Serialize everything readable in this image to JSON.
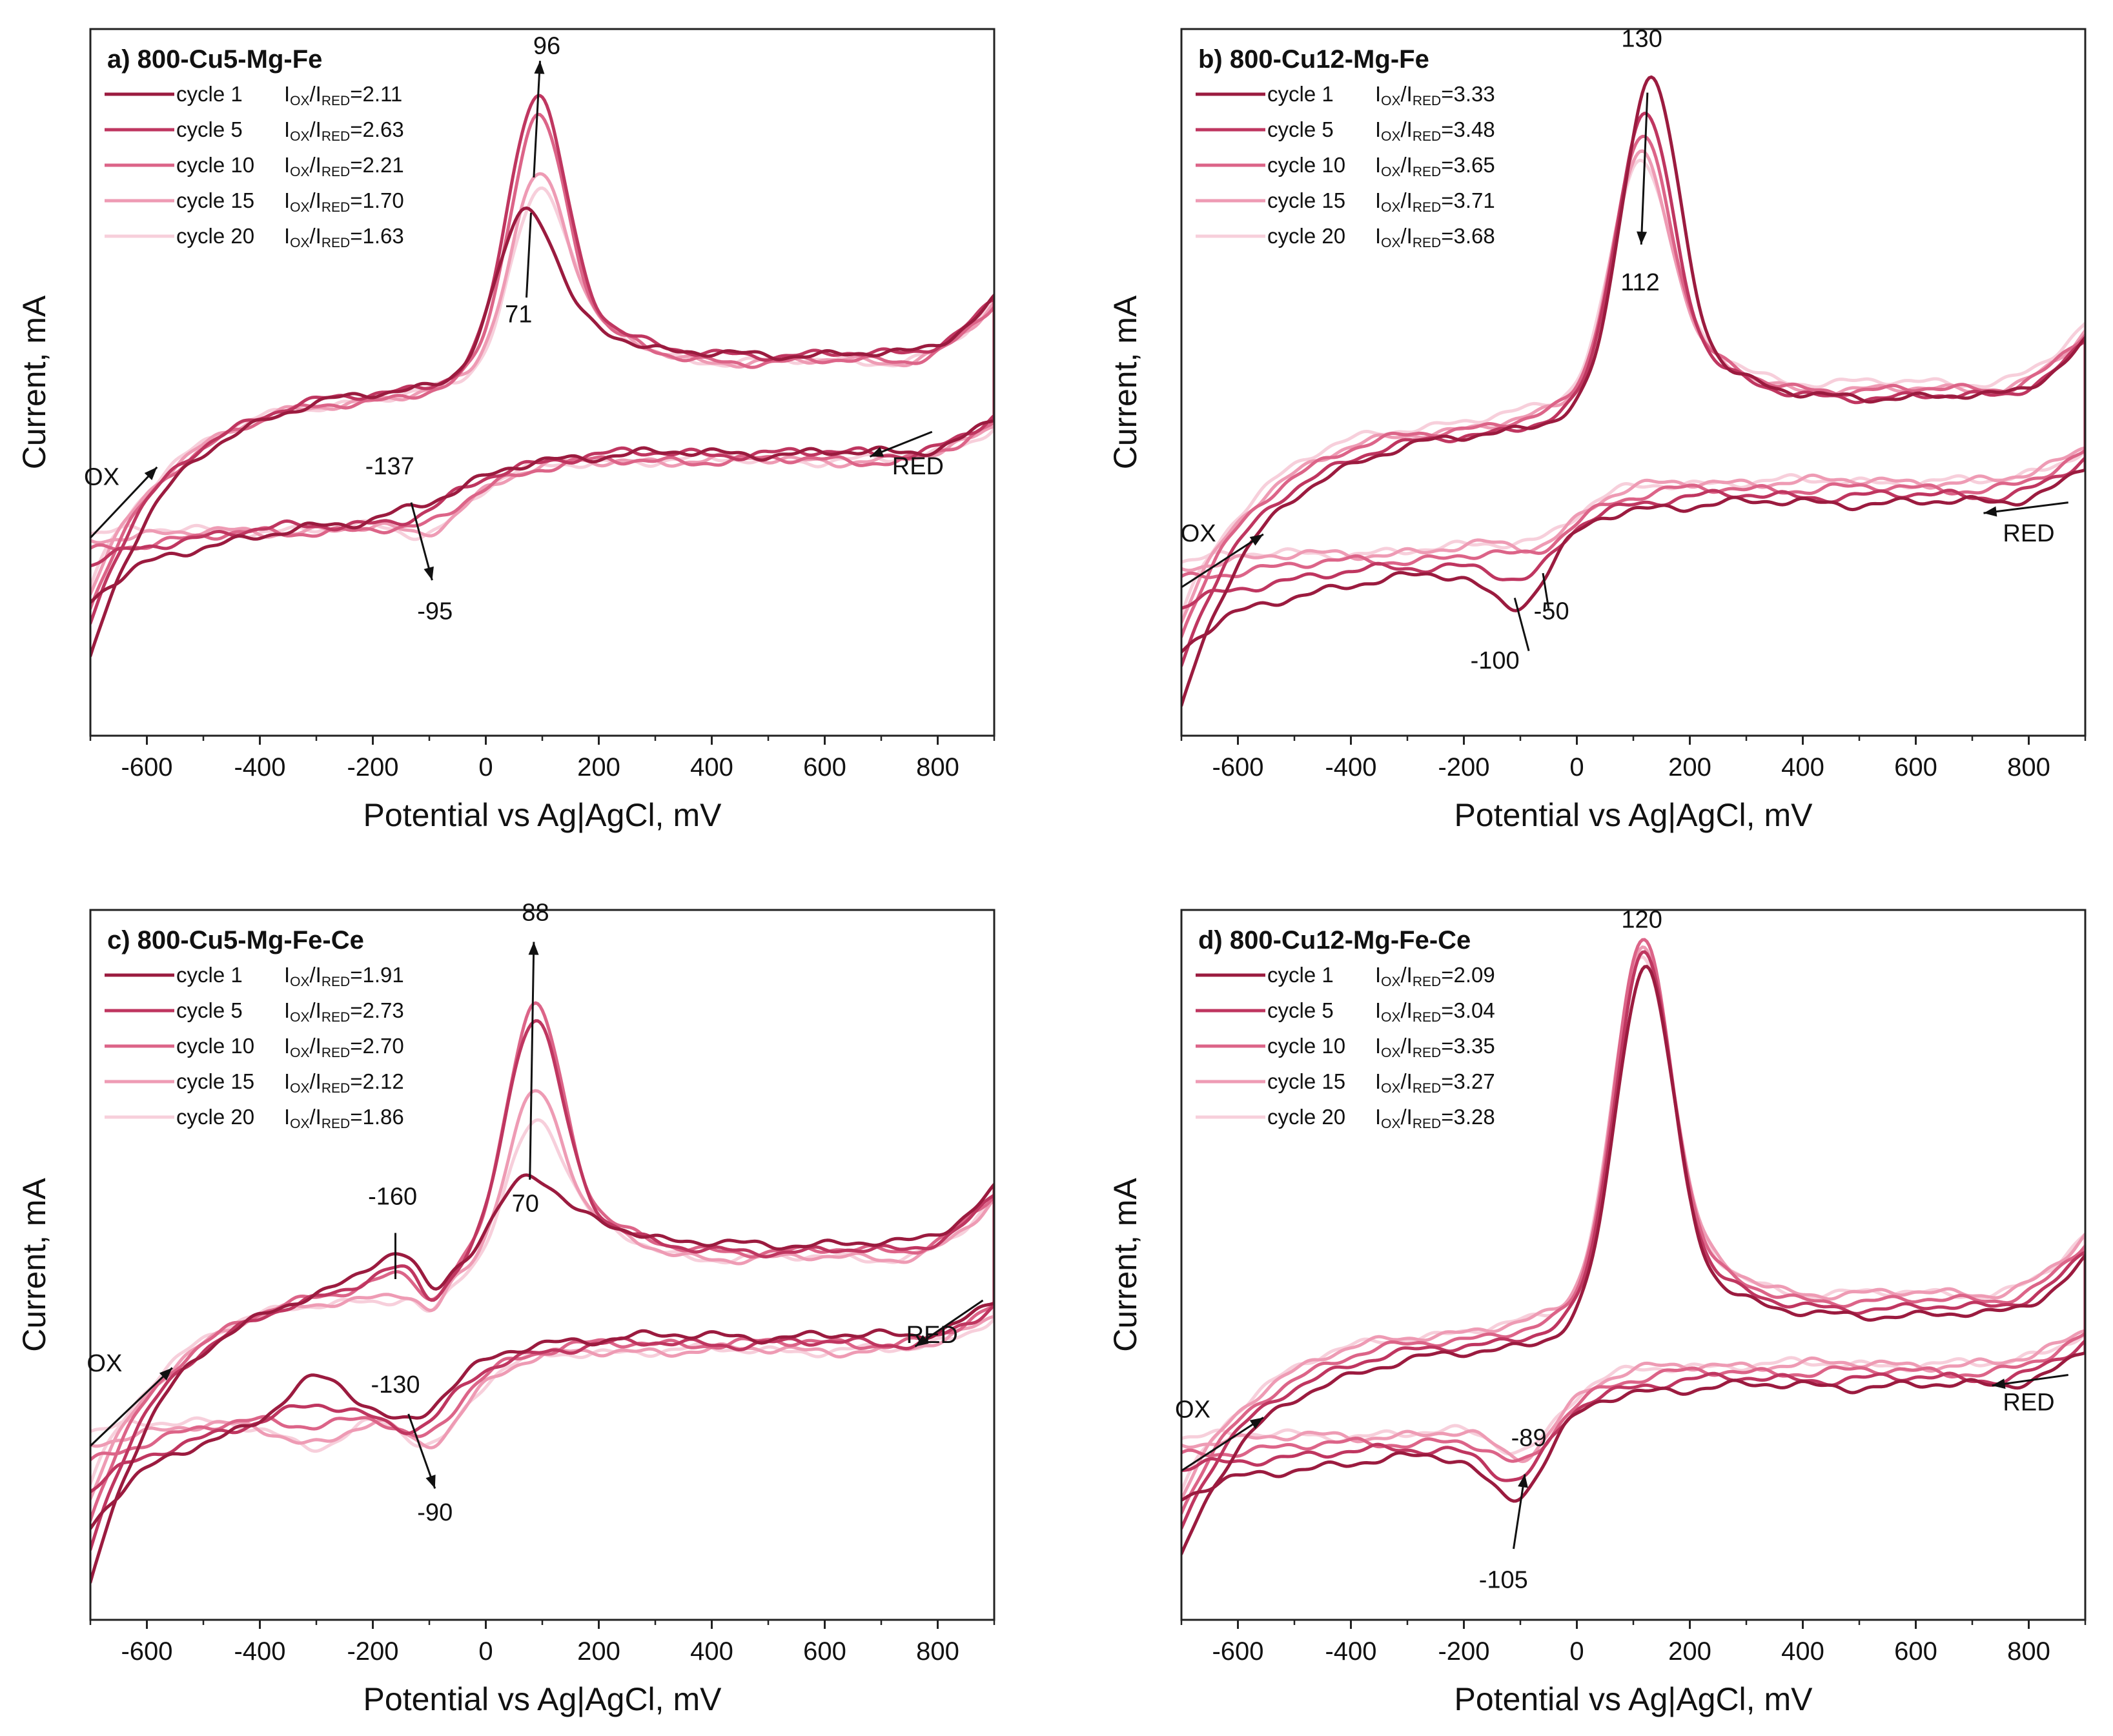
{
  "figure": {
    "axis_labels": {
      "x": "Potential vs Ag|AgCl, mV",
      "y": "Current, mA"
    }
  },
  "chart_data": [
    {
      "type": "line",
      "panel": "a",
      "title": "a) 800-Cu5-Mg-Fe",
      "xlabel": "Potential vs Ag|AgCl, mV",
      "ylabel": "Current, mA",
      "xlim": [
        -700,
        900
      ],
      "ylim": [
        0,
        1
      ],
      "y_ticks_shown": false,
      "x_ticks": [
        -600,
        -400,
        -200,
        0,
        200,
        400,
        600,
        800
      ],
      "legend_position": "top-left",
      "ratio_label": {
        "main": "I",
        "sub1": "OX",
        "sep": "/I",
        "sub2": "RED"
      },
      "series": [
        {
          "name": "cycle 1",
          "ratio": "=2.11",
          "color": "#9b1b3f",
          "ox_peak_x": 71,
          "ox_peak_y": 0.74,
          "red_peak_x": -137,
          "red_peak_y": 0.31,
          "base_y": 0.4,
          "upper_base_y": 0.49,
          "start_y": 0.11
        },
        {
          "name": "cycle 5",
          "ratio": "=2.63",
          "color": "#bf3660",
          "ox_peak_x": 90,
          "ox_peak_y": 0.9,
          "red_peak_x": -120,
          "red_peak_y": 0.29,
          "base_y": 0.4,
          "upper_base_y": 0.49,
          "start_y": 0.16
        },
        {
          "name": "cycle 10",
          "ratio": "=2.21",
          "color": "#dc6488",
          "ox_peak_x": 92,
          "ox_peak_y": 0.87,
          "red_peak_x": -105,
          "red_peak_y": 0.27,
          "base_y": 0.39,
          "upper_base_y": 0.48,
          "start_y": 0.18
        },
        {
          "name": "cycle 15",
          "ratio": "=1.70",
          "color": "#ee9bb4",
          "ox_peak_x": 94,
          "ox_peak_y": 0.79,
          "red_peak_x": -98,
          "red_peak_y": 0.26,
          "base_y": 0.39,
          "upper_base_y": 0.48,
          "start_y": 0.2
        },
        {
          "name": "cycle 20",
          "ratio": "=1.63",
          "color": "#f7cfdb",
          "ox_peak_x": 96,
          "ox_peak_y": 0.77,
          "red_peak_x": -95,
          "red_peak_y": 0.26,
          "base_y": 0.39,
          "upper_base_y": 0.48,
          "start_y": 0.21
        }
      ],
      "annotations": [
        {
          "text": "96",
          "x": 108,
          "y": 0.965
        },
        {
          "text": "71",
          "x": 58,
          "y": 0.585
        },
        {
          "text": "-137",
          "x": -170,
          "y": 0.37
        },
        {
          "text": "-95",
          "x": -90,
          "y": 0.165
        },
        {
          "text": "OX",
          "x": -680,
          "y": 0.355
        },
        {
          "text": "RED",
          "x": 765,
          "y": 0.37
        }
      ],
      "arrows": [
        {
          "from": [
            85,
            0.79
          ],
          "to": [
            96,
            0.955
          ],
          "head": true
        },
        {
          "from": [
            80,
            0.74
          ],
          "to": [
            72,
            0.62
          ],
          "head": false
        },
        {
          "from": [
            -132,
            0.33
          ],
          "to": [
            -95,
            0.22
          ],
          "head": true
        },
        {
          "from": [
            -700,
            0.28
          ],
          "to": [
            -582,
            0.38
          ],
          "head": true
        },
        {
          "from": [
            790,
            0.43
          ],
          "to": [
            680,
            0.395
          ],
          "head": true
        }
      ]
    },
    {
      "type": "line",
      "panel": "b",
      "title": "b) 800-Cu12-Mg-Fe",
      "xlabel": "Potential vs Ag|AgCl, mV",
      "ylabel": "Current, mA",
      "xlim": [
        -700,
        900
      ],
      "ylim": [
        0,
        1
      ],
      "y_ticks_shown": false,
      "x_ticks": [
        -600,
        -400,
        -200,
        0,
        200,
        400,
        600,
        800
      ],
      "legend_position": "top-left",
      "ratio_label": {
        "main": "I",
        "sub1": "OX",
        "sep": "/I",
        "sub2": "RED"
      },
      "series": [
        {
          "name": "cycle 1",
          "ratio": "=3.33",
          "color": "#9b1b3f",
          "ox_peak_x": 130,
          "ox_peak_y": 0.92,
          "red_peak_x": -100,
          "red_peak_y": 0.16,
          "base_y": 0.33,
          "upper_base_y": 0.43,
          "start_y": 0.04
        },
        {
          "name": "cycle 5",
          "ratio": "=3.48",
          "color": "#bf3660",
          "ox_peak_x": 120,
          "ox_peak_y": 0.87,
          "red_peak_x": -85,
          "red_peak_y": 0.19,
          "base_y": 0.34,
          "upper_base_y": 0.43,
          "start_y": 0.1
        },
        {
          "name": "cycle 10",
          "ratio": "=3.65",
          "color": "#dc6488",
          "ox_peak_x": 116,
          "ox_peak_y": 0.84,
          "red_peak_x": -70,
          "red_peak_y": 0.22,
          "base_y": 0.35,
          "upper_base_y": 0.44,
          "start_y": 0.14
        },
        {
          "name": "cycle 15",
          "ratio": "=3.71",
          "color": "#ee9bb4",
          "ox_peak_x": 113,
          "ox_peak_y": 0.82,
          "red_peak_x": -58,
          "red_peak_y": 0.23,
          "base_y": 0.36,
          "upper_base_y": 0.44,
          "start_y": 0.16
        },
        {
          "name": "cycle 20",
          "ratio": "=3.68",
          "color": "#f7cfdb",
          "ox_peak_x": 112,
          "ox_peak_y": 0.81,
          "red_peak_x": -50,
          "red_peak_y": 0.24,
          "base_y": 0.36,
          "upper_base_y": 0.45,
          "start_y": 0.17
        }
      ],
      "annotations": [
        {
          "text": "130",
          "x": 115,
          "y": 0.975
        },
        {
          "text": "112",
          "x": 112,
          "y": 0.63
        },
        {
          "text": "-50",
          "x": -45,
          "y": 0.165
        },
        {
          "text": "-100",
          "x": -145,
          "y": 0.095
        },
        {
          "text": "OX",
          "x": -670,
          "y": 0.275
        },
        {
          "text": "RED",
          "x": 800,
          "y": 0.275
        }
      ],
      "arrows": [
        {
          "from": [
            125,
            0.91
          ],
          "to": [
            114,
            0.695
          ],
          "head": true
        },
        {
          "from": [
            -60,
            0.23
          ],
          "to": [
            -50,
            0.18
          ],
          "head": false
        },
        {
          "from": [
            -110,
            0.195
          ],
          "to": [
            -85,
            0.12
          ],
          "head": false
        },
        {
          "from": [
            -700,
            0.21
          ],
          "to": [
            -555,
            0.285
          ],
          "head": true
        },
        {
          "from": [
            870,
            0.33
          ],
          "to": [
            720,
            0.315
          ],
          "head": true
        }
      ]
    },
    {
      "type": "line",
      "panel": "c",
      "title": "c) 800-Cu5-Mg-Fe-Ce",
      "xlabel": "Potential vs Ag|AgCl, mV",
      "ylabel": "Current, mA",
      "xlim": [
        -700,
        900
      ],
      "ylim": [
        0,
        1
      ],
      "y_ticks_shown": false,
      "x_ticks": [
        -600,
        -400,
        -200,
        0,
        200,
        400,
        600,
        800
      ],
      "legend_position": "top-left",
      "ratio_label": {
        "main": "I",
        "sub1": "OX",
        "sep": "/I",
        "sub2": "RED"
      },
      "series": [
        {
          "name": "cycle 1",
          "ratio": "=1.91",
          "color": "#9b1b3f",
          "ox_peak_x": 70,
          "ox_peak_y": 0.62,
          "red_peak_x": -130,
          "red_peak_y": 0.27,
          "base_y": 0.4,
          "upper_base_y": 0.48,
          "start_y": 0.05,
          "red_hump_x": -300,
          "red_hump_y": 0.35,
          "ox_shoulder_x": -160,
          "ox_shoulder_y": 0.52
        },
        {
          "name": "cycle 5",
          "ratio": "=2.73",
          "color": "#bf3660",
          "ox_peak_x": 85,
          "ox_peak_y": 0.84,
          "red_peak_x": -115,
          "red_peak_y": 0.25,
          "base_y": 0.39,
          "upper_base_y": 0.47,
          "start_y": 0.1,
          "red_hump_x": -300,
          "red_hump_y": 0.31,
          "ox_shoulder_x": -160,
          "ox_shoulder_y": 0.5
        },
        {
          "name": "cycle 10",
          "ratio": "=2.70",
          "color": "#dc6488",
          "ox_peak_x": 86,
          "ox_peak_y": 0.86,
          "red_peak_x": -105,
          "red_peak_y": 0.23,
          "base_y": 0.39,
          "upper_base_y": 0.47,
          "start_y": 0.14,
          "red_hump_x": -300,
          "red_hump_y": 0.28,
          "ox_shoulder_x": -160,
          "ox_shoulder_y": 0.49
        },
        {
          "name": "cycle 15",
          "ratio": "=2.12",
          "color": "#ee9bb4",
          "ox_peak_x": 87,
          "ox_peak_y": 0.74,
          "red_peak_x": -95,
          "red_peak_y": 0.22,
          "base_y": 0.38,
          "upper_base_y": 0.46,
          "start_y": 0.17,
          "red_hump_x": -300,
          "red_hump_y": 0.25,
          "ox_shoulder_x": -160,
          "ox_shoulder_y": 0.46
        },
        {
          "name": "cycle 20",
          "ratio": "=1.86",
          "color": "#f7cfdb",
          "ox_peak_x": 88,
          "ox_peak_y": 0.7,
          "red_peak_x": -90,
          "red_peak_y": 0.22,
          "base_y": 0.38,
          "upper_base_y": 0.46,
          "start_y": 0.19,
          "red_hump_x": -300,
          "red_hump_y": 0.24,
          "ox_shoulder_x": -160,
          "ox_shoulder_y": 0.45
        }
      ],
      "annotations": [
        {
          "text": "88",
          "x": 88,
          "y": 0.985
        },
        {
          "text": "70",
          "x": 70,
          "y": 0.575
        },
        {
          "text": "-160",
          "x": -165,
          "y": 0.585
        },
        {
          "text": "-130",
          "x": -160,
          "y": 0.32
        },
        {
          "text": "-90",
          "x": -90,
          "y": 0.14
        },
        {
          "text": "OX",
          "x": -675,
          "y": 0.35
        },
        {
          "text": "RED",
          "x": 790,
          "y": 0.39
        }
      ],
      "arrows": [
        {
          "from": [
            78,
            0.62
          ],
          "to": [
            85,
            0.955
          ],
          "head": true
        },
        {
          "from": [
            -160,
            0.545
          ],
          "to": [
            -160,
            0.48
          ],
          "head": false
        },
        {
          "from": [
            -137,
            0.29
          ],
          "to": [
            -90,
            0.185
          ],
          "head": true
        },
        {
          "from": [
            -700,
            0.245
          ],
          "to": [
            -555,
            0.355
          ],
          "head": true
        },
        {
          "from": [
            880,
            0.45
          ],
          "to": [
            760,
            0.385
          ],
          "head": true
        }
      ]
    },
    {
      "type": "line",
      "panel": "d",
      "title": "d) 800-Cu12-Mg-Fe-Ce",
      "xlabel": "Potential vs Ag|AgCl, mV",
      "ylabel": "Current, mA",
      "xlim": [
        -700,
        900
      ],
      "ylim": [
        0,
        1
      ],
      "y_ticks_shown": false,
      "x_ticks": [
        -600,
        -400,
        -200,
        0,
        200,
        400,
        600,
        800
      ],
      "legend_position": "top-left",
      "ratio_label": {
        "main": "I",
        "sub1": "OX",
        "sep": "/I",
        "sub2": "RED"
      },
      "series": [
        {
          "name": "cycle 1",
          "ratio": "=2.09",
          "color": "#9b1b3f",
          "ox_peak_x": 120,
          "ox_peak_y": 0.91,
          "red_peak_x": -105,
          "red_peak_y": 0.15,
          "base_y": 0.33,
          "upper_base_y": 0.38,
          "start_y": 0.09
        },
        {
          "name": "cycle 5",
          "ratio": "=3.04",
          "color": "#bf3660",
          "ox_peak_x": 118,
          "ox_peak_y": 0.93,
          "red_peak_x": -100,
          "red_peak_y": 0.17,
          "base_y": 0.34,
          "upper_base_y": 0.39,
          "start_y": 0.13
        },
        {
          "name": "cycle 10",
          "ratio": "=3.35",
          "color": "#dc6488",
          "ox_peak_x": 117,
          "ox_peak_y": 0.95,
          "red_peak_x": -95,
          "red_peak_y": 0.19,
          "base_y": 0.35,
          "upper_base_y": 0.4,
          "start_y": 0.15
        },
        {
          "name": "cycle 15",
          "ratio": "=3.27",
          "color": "#ee9bb4",
          "ox_peak_x": 116,
          "ox_peak_y": 0.94,
          "red_peak_x": -92,
          "red_peak_y": 0.2,
          "base_y": 0.36,
          "upper_base_y": 0.41,
          "start_y": 0.17
        },
        {
          "name": "cycle 20",
          "ratio": "=3.28",
          "color": "#f7cfdb",
          "ox_peak_x": 115,
          "ox_peak_y": 0.93,
          "red_peak_x": -89,
          "red_peak_y": 0.21,
          "base_y": 0.36,
          "upper_base_y": 0.41,
          "start_y": 0.18
        }
      ],
      "annotations": [
        {
          "text": "120",
          "x": 115,
          "y": 0.975
        },
        {
          "text": "-89",
          "x": -85,
          "y": 0.245
        },
        {
          "text": "-105",
          "x": -130,
          "y": 0.045
        },
        {
          "text": "OX",
          "x": -680,
          "y": 0.285
        },
        {
          "text": "RED",
          "x": 800,
          "y": 0.295
        }
      ],
      "arrows": [
        {
          "from": [
            -112,
            0.1
          ],
          "to": [
            -92,
            0.205
          ],
          "head": true
        },
        {
          "from": [
            -700,
            0.21
          ],
          "to": [
            -555,
            0.285
          ],
          "head": true
        },
        {
          "from": [
            870,
            0.345
          ],
          "to": [
            735,
            0.33
          ],
          "head": true
        }
      ]
    }
  ]
}
